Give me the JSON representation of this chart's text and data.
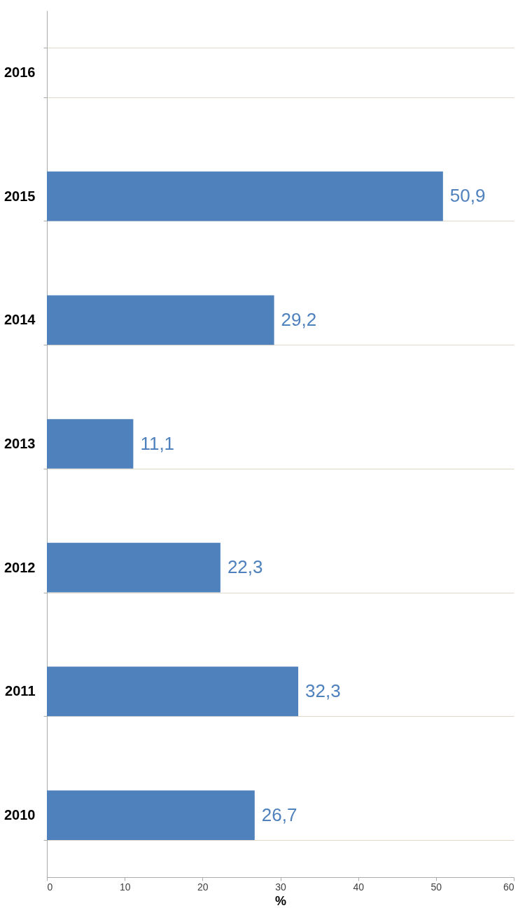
{
  "chart_data": {
    "type": "bar",
    "orientation": "horizontal",
    "xlabel": "%",
    "categories": [
      "2016",
      "2015",
      "2014",
      "2013",
      "2012",
      "2011",
      "2010"
    ],
    "values": [
      null,
      50.9,
      29.2,
      11.1,
      22.3,
      32.3,
      26.7
    ],
    "value_labels": [
      null,
      "50,9",
      "29,2",
      "11,1",
      "22,3",
      "32,3",
      "26,7"
    ],
    "color": "#4f81bd",
    "xlim": [
      0,
      60
    ],
    "xticks": [
      0,
      10,
      20,
      30,
      40,
      50,
      60
    ],
    "grid": "y"
  }
}
